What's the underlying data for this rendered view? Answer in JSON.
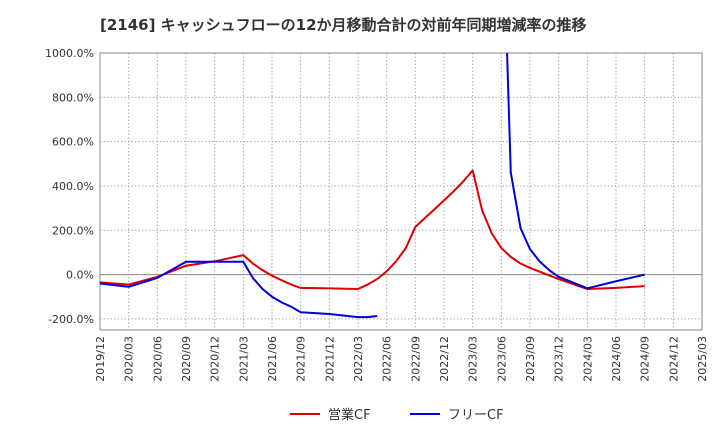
{
  "chart_data": {
    "type": "line",
    "title": "[2146]  キャッシュフローの12か月移動合計の対前年同期増減率の推移",
    "xlabel": "",
    "ylabel": "",
    "ylim": [
      -250,
      1000
    ],
    "yticks": [
      -200,
      0,
      200,
      400,
      600,
      800,
      1000
    ],
    "ytick_labels": [
      "-200.0%",
      "0.0%",
      "200.0%",
      "400.0%",
      "600.0%",
      "800.0%",
      "1000.0%"
    ],
    "categories": [
      "2019/12",
      "2020/03",
      "2020/06",
      "2020/09",
      "2020/12",
      "2021/03",
      "2021/06",
      "2021/09",
      "2021/12",
      "2022/03",
      "2022/06",
      "2022/09",
      "2022/12",
      "2023/03",
      "2023/06",
      "2023/09",
      "2023/12",
      "2024/03",
      "2024/06",
      "2024/09",
      "2024/12",
      "2025/03"
    ],
    "legend_position": "bottom",
    "series": [
      {
        "name": "営業CF",
        "color": "#dd0000",
        "points": [
          {
            "x": 0,
            "y": -35
          },
          {
            "x": 1,
            "y": -45
          },
          {
            "x": 2,
            "y": -10
          },
          {
            "x": 3,
            "y": 40
          },
          {
            "x": 4,
            "y": 60
          },
          {
            "x": 5,
            "y": 88
          },
          {
            "x": 5.33,
            "y": 50
          },
          {
            "x": 5.67,
            "y": 20
          },
          {
            "x": 6,
            "y": -5
          },
          {
            "x": 6.33,
            "y": -25
          },
          {
            "x": 6.67,
            "y": -45
          },
          {
            "x": 7,
            "y": -60
          },
          {
            "x": 8,
            "y": -62
          },
          {
            "x": 9,
            "y": -65
          },
          {
            "x": 9.33,
            "y": -45
          },
          {
            "x": 9.67,
            "y": -20
          },
          {
            "x": 10,
            "y": 15
          },
          {
            "x": 10.33,
            "y": 60
          },
          {
            "x": 10.67,
            "y": 120
          },
          {
            "x": 11,
            "y": 215
          },
          {
            "x": 11.33,
            "y": 255
          },
          {
            "x": 11.67,
            "y": 295
          },
          {
            "x": 12,
            "y": 335
          },
          {
            "x": 12.33,
            "y": 375
          },
          {
            "x": 12.67,
            "y": 420
          },
          {
            "x": 13,
            "y": 470
          },
          {
            "x": 13.33,
            "y": 290
          },
          {
            "x": 13.67,
            "y": 185
          },
          {
            "x": 14,
            "y": 120
          },
          {
            "x": 14.33,
            "y": 80
          },
          {
            "x": 14.67,
            "y": 50
          },
          {
            "x": 15,
            "y": 30
          },
          {
            "x": 16,
            "y": -20
          },
          {
            "x": 17,
            "y": -65
          },
          {
            "x": 18,
            "y": -60
          },
          {
            "x": 19,
            "y": -52
          }
        ]
      },
      {
        "name": "フリーCF",
        "color": "#0000dd",
        "points": [
          {
            "x": 0,
            "y": -40
          },
          {
            "x": 1,
            "y": -55
          },
          {
            "x": 2,
            "y": -15
          },
          {
            "x": 3,
            "y": 58
          },
          {
            "x": 4,
            "y": 58
          },
          {
            "x": 5,
            "y": 58
          },
          {
            "x": 5.33,
            "y": -15
          },
          {
            "x": 5.67,
            "y": -65
          },
          {
            "x": 6,
            "y": -100
          },
          {
            "x": 6.33,
            "y": -125
          },
          {
            "x": 6.67,
            "y": -145
          },
          {
            "x": 7,
            "y": -170
          },
          {
            "x": 8,
            "y": -178
          },
          {
            "x": 9,
            "y": -192
          },
          {
            "x": 9.33,
            "y": -192
          },
          {
            "x": 9.67,
            "y": -187
          },
          {
            "x": null,
            "y": null
          },
          {
            "x": 14.2,
            "y": 1000
          },
          {
            "x": 14.33,
            "y": 460
          },
          {
            "x": 14.67,
            "y": 210
          },
          {
            "x": 15,
            "y": 115
          },
          {
            "x": 15.33,
            "y": 60
          },
          {
            "x": 15.67,
            "y": 20
          },
          {
            "x": 16,
            "y": -10
          },
          {
            "x": 17,
            "y": -62
          },
          {
            "x": 18,
            "y": -30
          },
          {
            "x": 19,
            "y": 0
          }
        ]
      }
    ]
  }
}
